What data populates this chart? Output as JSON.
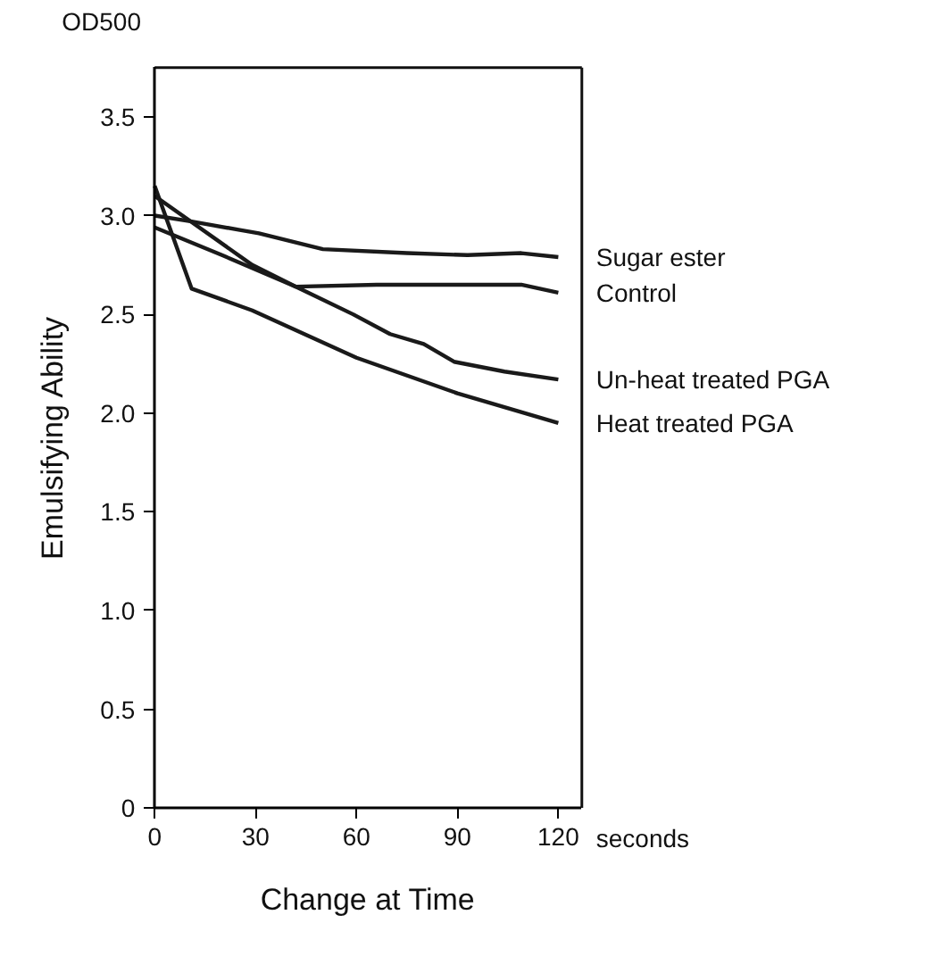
{
  "chart_data": {
    "type": "line",
    "xlabel": "Change at Time",
    "ylabel": "Emulsifying Ability",
    "annotations": [
      "OD500",
      "seconds"
    ],
    "xlim": [
      0,
      127
    ],
    "ylim": [
      0,
      3.75
    ],
    "xticks": [
      0,
      30,
      60,
      90,
      120
    ],
    "yticks": [
      0,
      {
        "value": 0.5,
        "label": "0.5"
      },
      {
        "value": 1,
        "label": "1.0"
      },
      {
        "value": 1.5,
        "label": "1.5"
      },
      {
        "value": 2,
        "label": "2.0"
      },
      {
        "value": 2.5,
        "label": "2.5"
      },
      {
        "value": 3,
        "label": "3.0"
      },
      {
        "value": 3.5,
        "label": "3.5"
      }
    ],
    "grid": false,
    "legend": false,
    "marker": "none",
    "line_style": "solid",
    "series": [
      {
        "name": "Sugar ester",
        "color": "#1a1a1a",
        "x": [
          0,
          11,
          31,
          50,
          75,
          93,
          109,
          120
        ],
        "values": [
          3.0,
          2.97,
          2.91,
          2.83,
          2.81,
          2.8,
          2.81,
          2.79
        ]
      },
      {
        "name": "Control",
        "color": "#1a1a1a",
        "x": [
          0,
          20,
          42,
          66,
          109,
          120
        ],
        "values": [
          2.94,
          2.8,
          2.64,
          2.65,
          2.65,
          2.61
        ]
      },
      {
        "name": "Un-heat treated PGA",
        "color": "#1a1a1a",
        "x": [
          0,
          29,
          42,
          59,
          70,
          80,
          89,
          104,
          120
        ],
        "values": [
          3.1,
          2.75,
          2.64,
          2.5,
          2.4,
          2.35,
          2.26,
          2.21,
          2.17
        ]
      },
      {
        "name": "Heat treated PGA",
        "color": "#1a1a1a",
        "x": [
          0,
          11,
          29,
          60,
          90,
          120
        ],
        "values": [
          3.15,
          2.63,
          2.52,
          2.28,
          2.1,
          1.95
        ]
      }
    ]
  }
}
